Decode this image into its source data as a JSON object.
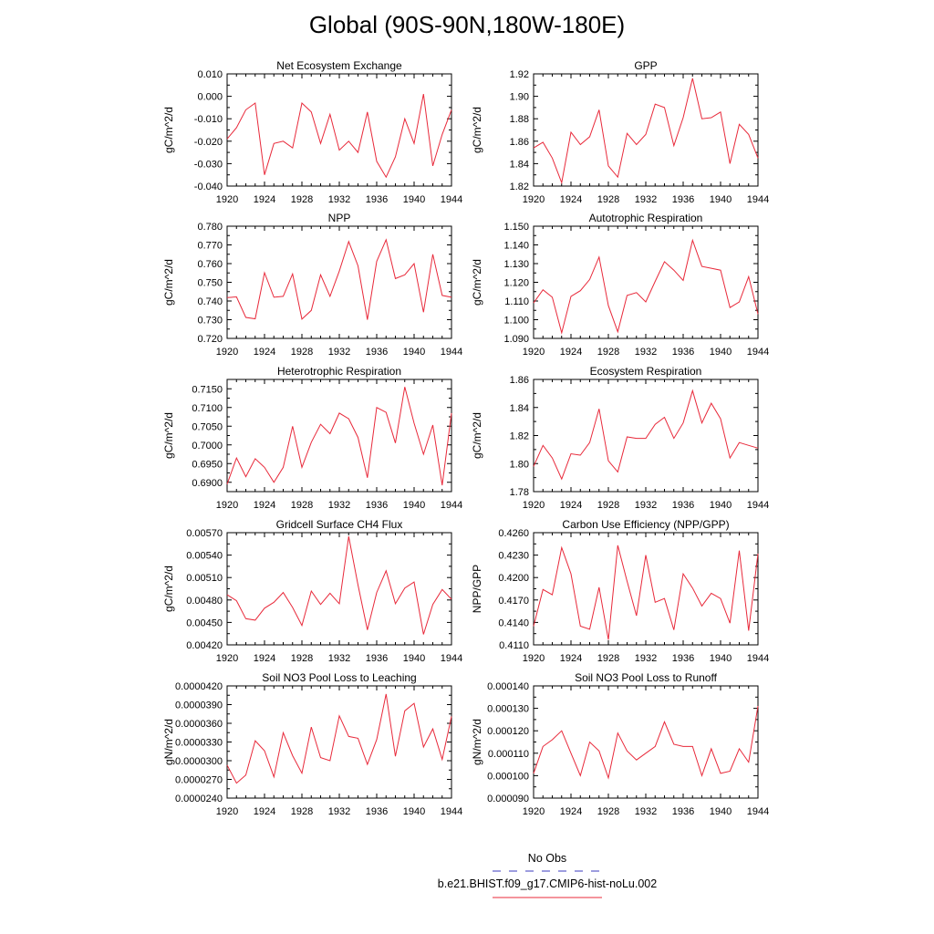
{
  "title": "Global (90S-90N,180W-180E)",
  "legend": {
    "entries": [
      {
        "label": "No Obs",
        "color": "#3b3bbf",
        "dash": true
      },
      {
        "label": "b.e21.BHIST.f09_g17.CMIP6-hist-noLu.002",
        "color": "#e8293a",
        "dash": false
      }
    ]
  },
  "chart_data": [
    {
      "type": "line",
      "title": "Net Ecosystem Exchange",
      "ylabel": "gC/m^2/d",
      "xlabel": "",
      "x": [
        1920,
        1921,
        1922,
        1923,
        1924,
        1925,
        1926,
        1927,
        1928,
        1929,
        1930,
        1931,
        1932,
        1933,
        1934,
        1935,
        1936,
        1937,
        1938,
        1939,
        1940,
        1941,
        1942,
        1943,
        1944
      ],
      "xlim": [
        1920,
        1944
      ],
      "xticks": [
        "1920",
        "1924",
        "1928",
        "1932",
        "1936",
        "1940",
        "1944"
      ],
      "ylim": [
        -0.04,
        0.01
      ],
      "yticks": [
        "0.010",
        "0.000",
        "-0.010",
        "-0.020",
        "-0.030",
        "-0.040"
      ],
      "series": [
        {
          "color": "#e8293a",
          "values": [
            -0.019,
            -0.014,
            -0.006,
            -0.003,
            -0.035,
            -0.021,
            -0.02,
            -0.023,
            -0.003,
            -0.007,
            -0.021,
            -0.008,
            -0.024,
            -0.02,
            -0.025,
            -0.007,
            -0.029,
            -0.036,
            -0.027,
            -0.01,
            -0.021,
            0.001,
            -0.031,
            -0.017,
            -0.006
          ]
        }
      ]
    },
    {
      "type": "line",
      "title": "GPP",
      "ylabel": "gC/m^2/d",
      "xlabel": "",
      "x": [
        1920,
        1921,
        1922,
        1923,
        1924,
        1925,
        1926,
        1927,
        1928,
        1929,
        1930,
        1931,
        1932,
        1933,
        1934,
        1935,
        1936,
        1937,
        1938,
        1939,
        1940,
        1941,
        1942,
        1943,
        1944
      ],
      "xlim": [
        1920,
        1944
      ],
      "xticks": [
        "1920",
        "1924",
        "1928",
        "1932",
        "1936",
        "1940",
        "1944"
      ],
      "ylim": [
        1.82,
        1.92
      ],
      "yticks": [
        "1.92",
        "1.90",
        "1.88",
        "1.86",
        "1.84",
        "1.82"
      ],
      "series": [
        {
          "color": "#e8293a",
          "values": [
            1.854,
            1.859,
            1.845,
            1.823,
            1.868,
            1.857,
            1.864,
            1.888,
            1.838,
            1.828,
            1.867,
            1.857,
            1.866,
            1.893,
            1.89,
            1.856,
            1.881,
            1.916,
            1.88,
            1.881,
            1.886,
            1.84,
            1.875,
            1.866,
            1.845
          ]
        }
      ]
    },
    {
      "type": "line",
      "title": "NPP",
      "ylabel": "gC/m^2/d",
      "xlabel": "",
      "x": [
        1920,
        1921,
        1922,
        1923,
        1924,
        1925,
        1926,
        1927,
        1928,
        1929,
        1930,
        1931,
        1932,
        1933,
        1934,
        1935,
        1936,
        1937,
        1938,
        1939,
        1940,
        1941,
        1942,
        1943,
        1944
      ],
      "xlim": [
        1920,
        1944
      ],
      "xticks": [
        "1920",
        "1924",
        "1928",
        "1932",
        "1936",
        "1940",
        "1944"
      ],
      "ylim": [
        0.72,
        0.78
      ],
      "yticks": [
        "0.780",
        "0.770",
        "0.760",
        "0.750",
        "0.740",
        "0.730",
        "0.720"
      ],
      "series": [
        {
          "color": "#e8293a",
          "values": [
            0.7418,
            0.7422,
            0.7312,
            0.7305,
            0.7551,
            0.742,
            0.7425,
            0.7545,
            0.7303,
            0.735,
            0.754,
            0.7425,
            0.756,
            0.7718,
            0.7588,
            0.73,
            0.7612,
            0.7728,
            0.752,
            0.754,
            0.76,
            0.734,
            0.765,
            0.743,
            0.742
          ]
        }
      ]
    },
    {
      "type": "line",
      "title": "Autotrophic Respiration",
      "ylabel": "gC/m^2/d",
      "xlabel": "",
      "x": [
        1920,
        1921,
        1922,
        1923,
        1924,
        1925,
        1926,
        1927,
        1928,
        1929,
        1930,
        1931,
        1932,
        1933,
        1934,
        1935,
        1936,
        1937,
        1938,
        1939,
        1940,
        1941,
        1942,
        1943,
        1944
      ],
      "xlim": [
        1920,
        1944
      ],
      "xticks": [
        "1920",
        "1924",
        "1928",
        "1932",
        "1936",
        "1940",
        "1944"
      ],
      "ylim": [
        1.09,
        1.15
      ],
      "yticks": [
        "1.150",
        "1.140",
        "1.130",
        "1.120",
        "1.110",
        "1.100",
        "1.090"
      ],
      "series": [
        {
          "color": "#e8293a",
          "values": [
            1.109,
            1.116,
            1.112,
            1.093,
            1.1125,
            1.1155,
            1.1215,
            1.1335,
            1.1075,
            1.0935,
            1.113,
            1.1145,
            1.1095,
            1.1205,
            1.131,
            1.1265,
            1.121,
            1.1425,
            1.1285,
            1.1275,
            1.1265,
            1.1065,
            1.1095,
            1.123,
            1.103
          ]
        }
      ]
    },
    {
      "type": "line",
      "title": "Heterotrophic Respiration",
      "ylabel": "gC/m^2/d",
      "xlabel": "",
      "x": [
        1920,
        1921,
        1922,
        1923,
        1924,
        1925,
        1926,
        1927,
        1928,
        1929,
        1930,
        1931,
        1932,
        1933,
        1934,
        1935,
        1936,
        1937,
        1938,
        1939,
        1940,
        1941,
        1942,
        1943,
        1944
      ],
      "xlim": [
        1920,
        1944
      ],
      "xticks": [
        "1920",
        "1924",
        "1928",
        "1932",
        "1936",
        "1940",
        "1944"
      ],
      "ylim": [
        0.6875,
        0.7175
      ],
      "yticks": [
        "0.7150",
        "0.7100",
        "0.7050",
        "0.7000",
        "0.6950",
        "0.6900"
      ],
      "series": [
        {
          "color": "#e8293a",
          "values": [
            0.6895,
            0.6965,
            0.6915,
            0.6963,
            0.694,
            0.69,
            0.694,
            0.705,
            0.694,
            0.7007,
            0.7055,
            0.703,
            0.7085,
            0.707,
            0.702,
            0.6912,
            0.71,
            0.7087,
            0.7005,
            0.7155,
            0.7058,
            0.6975,
            0.7053,
            0.6892,
            0.7085
          ]
        }
      ]
    },
    {
      "type": "line",
      "title": "Ecosystem Respiration",
      "ylabel": "gC/m^2/d",
      "xlabel": "",
      "x": [
        1920,
        1921,
        1922,
        1923,
        1924,
        1925,
        1926,
        1927,
        1928,
        1929,
        1930,
        1931,
        1932,
        1933,
        1934,
        1935,
        1936,
        1937,
        1938,
        1939,
        1940,
        1941,
        1942,
        1943,
        1944
      ],
      "xlim": [
        1920,
        1944
      ],
      "xticks": [
        "1920",
        "1924",
        "1928",
        "1932",
        "1936",
        "1940",
        "1944"
      ],
      "ylim": [
        1.78,
        1.86
      ],
      "yticks": [
        "1.86",
        "1.84",
        "1.82",
        "1.80",
        "1.78"
      ],
      "series": [
        {
          "color": "#e8293a",
          "values": [
            1.798,
            1.813,
            1.804,
            1.789,
            1.807,
            1.806,
            1.815,
            1.839,
            1.802,
            1.794,
            1.819,
            1.818,
            1.818,
            1.828,
            1.833,
            1.818,
            1.829,
            1.852,
            1.829,
            1.843,
            1.832,
            1.804,
            1.815,
            1.813,
            1.811
          ]
        }
      ]
    },
    {
      "type": "line",
      "title": "Gridcell Surface CH4 Flux",
      "ylabel": "gC/m^2/d",
      "xlabel": "",
      "x": [
        1920,
        1921,
        1922,
        1923,
        1924,
        1925,
        1926,
        1927,
        1928,
        1929,
        1930,
        1931,
        1932,
        1933,
        1934,
        1935,
        1936,
        1937,
        1938,
        1939,
        1940,
        1941,
        1942,
        1943,
        1944
      ],
      "xlim": [
        1920,
        1944
      ],
      "xticks": [
        "1920",
        "1924",
        "1928",
        "1932",
        "1936",
        "1940",
        "1944"
      ],
      "ylim": [
        0.0042,
        0.0057
      ],
      "yticks": [
        "0.00570",
        "0.00540",
        "0.00510",
        "0.00480",
        "0.00450",
        "0.00420"
      ],
      "series": [
        {
          "color": "#e8293a",
          "values": [
            0.00487,
            0.00479,
            0.00455,
            0.00453,
            0.00469,
            0.00477,
            0.0049,
            0.0047,
            0.00446,
            0.00492,
            0.00474,
            0.00489,
            0.00475,
            0.00565,
            0.005,
            0.0044,
            0.0049,
            0.00519,
            0.00475,
            0.00496,
            0.00504,
            0.00434,
            0.00474,
            0.00494,
            0.00481
          ]
        }
      ]
    },
    {
      "type": "line",
      "title": "Carbon Use Efficiency (NPP/GPP)",
      "ylabel": "NPP/GPP",
      "xlabel": "",
      "x": [
        1920,
        1921,
        1922,
        1923,
        1924,
        1925,
        1926,
        1927,
        1928,
        1929,
        1930,
        1931,
        1932,
        1933,
        1934,
        1935,
        1936,
        1937,
        1938,
        1939,
        1940,
        1941,
        1942,
        1943,
        1944
      ],
      "xlim": [
        1920,
        1944
      ],
      "xticks": [
        "1920",
        "1924",
        "1928",
        "1932",
        "1936",
        "1940",
        "1944"
      ],
      "ylim": [
        0.411,
        0.426
      ],
      "yticks": [
        "0.4260",
        "0.4230",
        "0.4200",
        "0.4170",
        "0.4140",
        "0.4110"
      ],
      "series": [
        {
          "color": "#e8293a",
          "values": [
            0.4135,
            0.4184,
            0.4177,
            0.424,
            0.4205,
            0.4135,
            0.4131,
            0.4187,
            0.4117,
            0.4243,
            0.4195,
            0.4149,
            0.423,
            0.4167,
            0.4172,
            0.413,
            0.4205,
            0.4186,
            0.4162,
            0.4179,
            0.4172,
            0.4139,
            0.4236,
            0.4129,
            0.4232
          ]
        }
      ]
    },
    {
      "type": "line",
      "title": "Soil NO3 Pool Loss to Leaching",
      "ylabel": "gN/m^2/d",
      "xlabel": "",
      "x": [
        1920,
        1921,
        1922,
        1923,
        1924,
        1925,
        1926,
        1927,
        1928,
        1929,
        1930,
        1931,
        1932,
        1933,
        1934,
        1935,
        1936,
        1937,
        1938,
        1939,
        1940,
        1941,
        1942,
        1943,
        1944
      ],
      "xlim": [
        1920,
        1944
      ],
      "xticks": [
        "1920",
        "1924",
        "1928",
        "1932",
        "1936",
        "1940",
        "1944"
      ],
      "ylim": [
        2.4e-05,
        4.2e-05
      ],
      "yticks": [
        "0.0000420",
        "0.0000390",
        "0.0000360",
        "0.0000330",
        "0.0000300",
        "0.0000270",
        "0.0000240"
      ],
      "series": [
        {
          "color": "#e8293a",
          "values": [
            2.93e-05,
            2.64e-05,
            2.77e-05,
            3.32e-05,
            3.16e-05,
            2.74e-05,
            3.45e-05,
            3.08e-05,
            2.8e-05,
            3.54e-05,
            3.05e-05,
            3e-05,
            3.72e-05,
            3.39e-05,
            3.36e-05,
            2.94e-05,
            3.34e-05,
            4.07e-05,
            3.07e-05,
            3.8e-05,
            3.92e-05,
            3.22e-05,
            3.51e-05,
            3.02e-05,
            3.71e-05
          ]
        }
      ]
    },
    {
      "type": "line",
      "title": "Soil NO3 Pool Loss to Runoff",
      "ylabel": "gN/m^2/d",
      "xlabel": "",
      "x": [
        1920,
        1921,
        1922,
        1923,
        1924,
        1925,
        1926,
        1927,
        1928,
        1929,
        1930,
        1931,
        1932,
        1933,
        1934,
        1935,
        1936,
        1937,
        1938,
        1939,
        1940,
        1941,
        1942,
        1943,
        1944
      ],
      "xlim": [
        1920,
        1944
      ],
      "xticks": [
        "1920",
        "1924",
        "1928",
        "1932",
        "1936",
        "1940",
        "1944"
      ],
      "ylim": [
        9e-05,
        0.00014
      ],
      "yticks": [
        "0.000140",
        "0.000130",
        "0.000120",
        "0.000110",
        "0.000100",
        "0.000090"
      ],
      "series": [
        {
          "color": "#e8293a",
          "values": [
            0.000101,
            0.000113,
            0.000116,
            0.00012,
            0.00011,
            0.0001,
            0.000115,
            0.000111,
            9.9e-05,
            0.000119,
            0.000111,
            0.000107,
            0.00011,
            0.000113,
            0.000124,
            0.000114,
            0.000113,
            0.000113,
            0.0001,
            0.000112,
            0.000101,
            0.000102,
            0.000112,
            0.000106,
            0.000131
          ]
        }
      ]
    }
  ]
}
